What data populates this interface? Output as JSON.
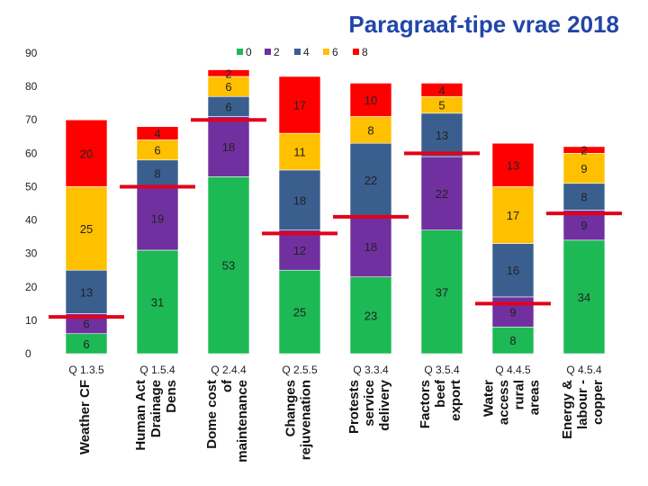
{
  "chart_data": {
    "type": "bar",
    "stacked": true,
    "title": "Paragraaf-tipe vrae 2018",
    "xlabel": "",
    "ylabel": "",
    "ylim": [
      0,
      90
    ],
    "yticks": [
      "0",
      "10",
      "20",
      "30",
      "40",
      "50",
      "60",
      "70",
      "80",
      "90"
    ],
    "grid": false,
    "legend_position": "top",
    "categories": [
      "Q 1.3.5",
      "Q 1.5.4",
      "Q 2.4.4",
      "Q 2.5.5",
      "Q 3.3.4",
      "Q 3.5.4",
      "Q 4.4.5",
      "Q 4.5.4"
    ],
    "category_descriptions": [
      "Weather CF",
      "Human Act Drainage Dens",
      "Dome cost of maintenance",
      "Changes rejuvenation",
      "Protests service delivery",
      "Factors beef export",
      "Water access rural areas",
      "Energy & labour - copper"
    ],
    "series": [
      {
        "name": "0",
        "color": "#1db954",
        "values": [
          6,
          31,
          53,
          25,
          23,
          37,
          8,
          34
        ]
      },
      {
        "name": "2",
        "color": "#7030a0",
        "values": [
          6,
          19,
          18,
          12,
          18,
          22,
          9,
          9
        ]
      },
      {
        "name": "4",
        "color": "#3a5f8f",
        "values": [
          13,
          8,
          6,
          18,
          22,
          13,
          16,
          8
        ]
      },
      {
        "name": "6",
        "color": "#ffc000",
        "values": [
          25,
          6,
          6,
          11,
          8,
          5,
          17,
          9
        ]
      },
      {
        "name": "8",
        "color": "#ff0000",
        "values": [
          20,
          4,
          2,
          17,
          10,
          4,
          13,
          2
        ]
      }
    ],
    "data_labels": [
      [
        "6",
        "6",
        "13",
        "25",
        "20"
      ],
      [
        "31",
        "19",
        "8",
        "6",
        "4"
      ],
      [
        "53",
        "18",
        "6",
        "6",
        "2"
      ],
      [
        "25",
        "12",
        "18",
        "11",
        "17"
      ],
      [
        "23",
        "18",
        "22",
        "8",
        "10"
      ],
      [
        "37",
        "22",
        "13",
        "5",
        "4"
      ],
      [
        "8",
        "9",
        "16",
        "17",
        "13"
      ],
      [
        "34",
        "9",
        "8",
        "9",
        "2"
      ]
    ],
    "threshold_markers": [
      11,
      50,
      70,
      36,
      41,
      60,
      15,
      42
    ]
  }
}
